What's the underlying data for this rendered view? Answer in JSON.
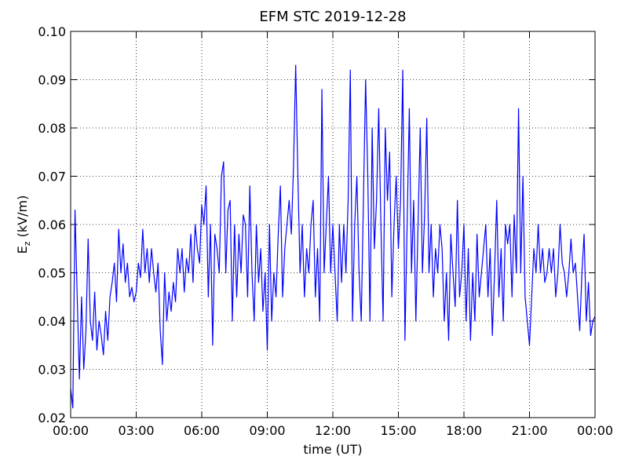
{
  "chart_data": {
    "type": "line",
    "title": "EFM STC    2019-12-28",
    "xlabel": "time (UT)",
    "ylabel": [
      "E",
      "z",
      " (kV/m)"
    ],
    "color": "#0000ff",
    "grid": true,
    "xlim": [
      0,
      24
    ],
    "ylim": [
      0.02,
      0.1
    ],
    "xticks": [
      {
        "value": 0,
        "label": "00:00"
      },
      {
        "value": 3,
        "label": "03:00"
      },
      {
        "value": 6,
        "label": "06:00"
      },
      {
        "value": 9,
        "label": "09:00"
      },
      {
        "value": 12,
        "label": "12:00"
      },
      {
        "value": 15,
        "label": "15:00"
      },
      {
        "value": 18,
        "label": "18:00"
      },
      {
        "value": 21,
        "label": "21:00"
      },
      {
        "value": 24,
        "label": "00:00"
      }
    ],
    "yticks": [
      0.02,
      0.03,
      0.04,
      0.05,
      0.06,
      0.07,
      0.08,
      0.09,
      {
        "value": 0.1,
        "label": "0.10"
      }
    ],
    "x": [
      0,
      0.1,
      0.2,
      0.3,
      0.4,
      0.5,
      0.6,
      0.7,
      0.8,
      0.9,
      1,
      1.1,
      1.2,
      1.3,
      1.4,
      1.5,
      1.6,
      1.7,
      1.8,
      1.9,
      2,
      2.1,
      2.2,
      2.3,
      2.4,
      2.5,
      2.6,
      2.7,
      2.8,
      2.9,
      3,
      3.1,
      3.2,
      3.3,
      3.4,
      3.5,
      3.6,
      3.7,
      3.8,
      3.9,
      4,
      4.1,
      4.2,
      4.3,
      4.4,
      4.5,
      4.6,
      4.7,
      4.8,
      4.9,
      5,
      5.1,
      5.2,
      5.3,
      5.4,
      5.5,
      5.6,
      5.7,
      5.8,
      5.9,
      6,
      6.1,
      6.2,
      6.3,
      6.4,
      6.5,
      6.6,
      6.7,
      6.8,
      6.9,
      7,
      7.1,
      7.2,
      7.3,
      7.4,
      7.5,
      7.6,
      7.7,
      7.8,
      7.9,
      8,
      8.1,
      8.2,
      8.3,
      8.4,
      8.5,
      8.6,
      8.7,
      8.8,
      8.9,
      9,
      9.1,
      9.2,
      9.3,
      9.4,
      9.5,
      9.6,
      9.7,
      9.8,
      9.9,
      10,
      10.1,
      10.2,
      10.3,
      10.4,
      10.5,
      10.6,
      10.7,
      10.8,
      10.9,
      11,
      11.1,
      11.2,
      11.3,
      11.4,
      11.5,
      11.6,
      11.7,
      11.8,
      11.9,
      12,
      12.1,
      12.2,
      12.3,
      12.4,
      12.5,
      12.6,
      12.7,
      12.8,
      12.9,
      13,
      13.1,
      13.2,
      13.3,
      13.4,
      13.5,
      13.6,
      13.7,
      13.8,
      13.9,
      14,
      14.1,
      14.2,
      14.3,
      14.4,
      14.5,
      14.6,
      14.7,
      14.8,
      14.9,
      15,
      15.1,
      15.2,
      15.3,
      15.4,
      15.5,
      15.6,
      15.7,
      15.8,
      15.9,
      16,
      16.1,
      16.2,
      16.3,
      16.4,
      16.5,
      16.6,
      16.7,
      16.8,
      16.9,
      17,
      17.1,
      17.2,
      17.3,
      17.4,
      17.5,
      17.6,
      17.7,
      17.8,
      17.9,
      18,
      18.1,
      18.2,
      18.3,
      18.4,
      18.5,
      18.6,
      18.7,
      18.8,
      18.9,
      19,
      19.1,
      19.2,
      19.3,
      19.4,
      19.5,
      19.6,
      19.7,
      19.8,
      19.9,
      20,
      20.1,
      20.2,
      20.3,
      20.4,
      20.5,
      20.6,
      20.7,
      20.8,
      20.9,
      21,
      21.1,
      21.2,
      21.3,
      21.4,
      21.5,
      21.6,
      21.7,
      21.8,
      21.9,
      22,
      22.1,
      22.2,
      22.3,
      22.4,
      22.5,
      22.6,
      22.7,
      22.8,
      22.9,
      23,
      23.1,
      23.2,
      23.3,
      23.4,
      23.5,
      23.6,
      23.7,
      23.8,
      23.9,
      24
    ],
    "values": [
      0.026,
      0.022,
      0.063,
      0.045,
      0.028,
      0.045,
      0.03,
      0.038,
      0.057,
      0.04,
      0.036,
      0.046,
      0.034,
      0.04,
      0.037,
      0.033,
      0.042,
      0.036,
      0.045,
      0.048,
      0.052,
      0.044,
      0.059,
      0.05,
      0.056,
      0.048,
      0.052,
      0.045,
      0.047,
      0.044,
      0.046,
      0.052,
      0.049,
      0.059,
      0.05,
      0.055,
      0.048,
      0.055,
      0.05,
      0.046,
      0.052,
      0.038,
      0.031,
      0.05,
      0.04,
      0.046,
      0.042,
      0.048,
      0.044,
      0.055,
      0.05,
      0.055,
      0.046,
      0.053,
      0.05,
      0.058,
      0.048,
      0.06,
      0.055,
      0.052,
      0.064,
      0.06,
      0.068,
      0.045,
      0.06,
      0.035,
      0.058,
      0.055,
      0.05,
      0.07,
      0.073,
      0.05,
      0.063,
      0.065,
      0.04,
      0.06,
      0.045,
      0.058,
      0.05,
      0.062,
      0.06,
      0.045,
      0.068,
      0.05,
      0.04,
      0.06,
      0.048,
      0.055,
      0.042,
      0.05,
      0.034,
      0.06,
      0.04,
      0.05,
      0.045,
      0.058,
      0.068,
      0.045,
      0.055,
      0.06,
      0.065,
      0.058,
      0.072,
      0.093,
      0.07,
      0.05,
      0.06,
      0.045,
      0.055,
      0.05,
      0.06,
      0.065,
      0.045,
      0.055,
      0.04,
      0.088,
      0.05,
      0.06,
      0.07,
      0.05,
      0.06,
      0.05,
      0.04,
      0.06,
      0.048,
      0.06,
      0.05,
      0.065,
      0.092,
      0.04,
      0.06,
      0.07,
      0.05,
      0.04,
      0.065,
      0.09,
      0.07,
      0.04,
      0.08,
      0.055,
      0.065,
      0.084,
      0.06,
      0.04,
      0.08,
      0.065,
      0.075,
      0.045,
      0.06,
      0.07,
      0.055,
      0.065,
      0.092,
      0.036,
      0.06,
      0.084,
      0.05,
      0.065,
      0.04,
      0.06,
      0.08,
      0.05,
      0.062,
      0.082,
      0.05,
      0.06,
      0.045,
      0.055,
      0.05,
      0.06,
      0.055,
      0.04,
      0.05,
      0.036,
      0.058,
      0.05,
      0.043,
      0.065,
      0.045,
      0.05,
      0.06,
      0.04,
      0.055,
      0.036,
      0.05,
      0.04,
      0.058,
      0.045,
      0.05,
      0.055,
      0.06,
      0.045,
      0.055,
      0.037,
      0.05,
      0.065,
      0.045,
      0.055,
      0.04,
      0.06,
      0.056,
      0.06,
      0.045,
      0.062,
      0.05,
      0.084,
      0.05,
      0.07,
      0.045,
      0.04,
      0.035,
      0.045,
      0.055,
      0.05,
      0.06,
      0.05,
      0.055,
      0.048,
      0.05,
      0.055,
      0.05,
      0.055,
      0.045,
      0.05,
      0.06,
      0.052,
      0.05,
      0.045,
      0.05,
      0.057,
      0.05,
      0.052,
      0.045,
      0.038,
      0.05,
      0.058,
      0.04,
      0.048,
      0.037,
      0.04,
      0.041
    ]
  }
}
